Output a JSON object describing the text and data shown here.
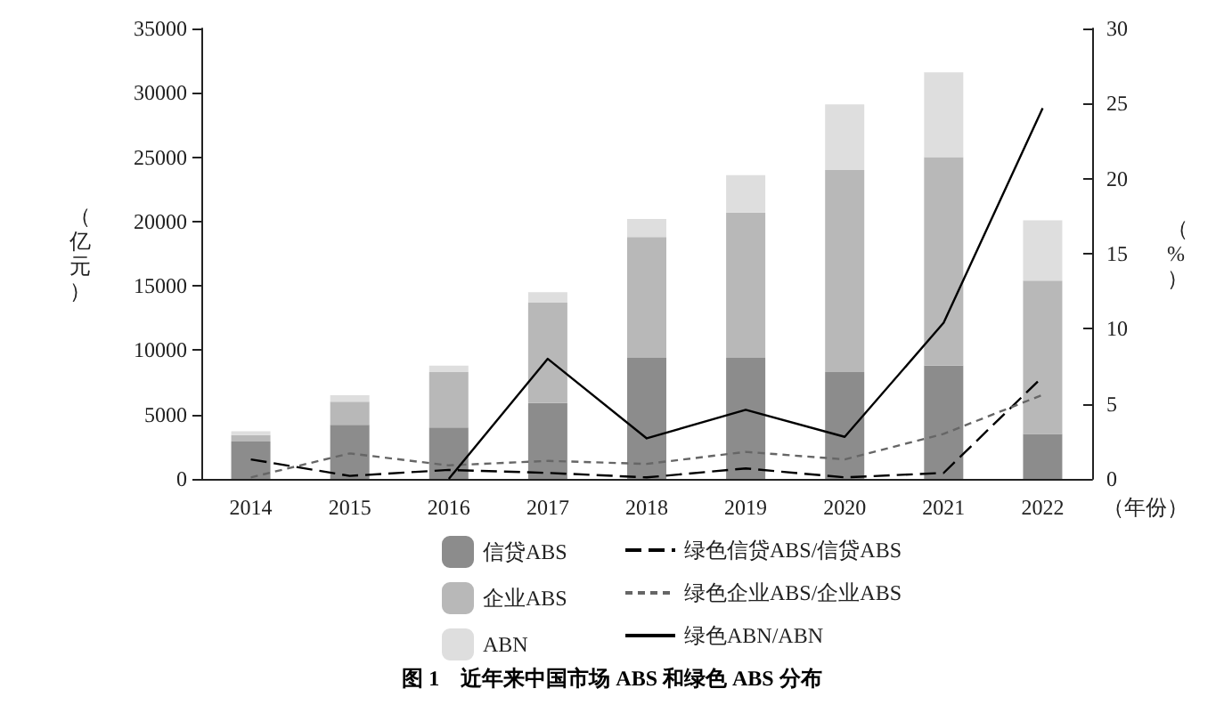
{
  "chart_data": {
    "type": "bar",
    "title": "图 1　近年来中国市场 ABS 和绿色 ABS 分布",
    "categories": [
      "2014",
      "2015",
      "2016",
      "2017",
      "2018",
      "2019",
      "2020",
      "2021",
      "2022"
    ],
    "xlabel": "（年份）",
    "ylabel": "（亿元）",
    "y2label": "（%）",
    "stacked": true,
    "grid": false,
    "legend": "bottom",
    "marker": "none",
    "ylim": [
      0,
      35000
    ],
    "yticks": [
      0,
      5000,
      10000,
      15000,
      20000,
      25000,
      30000,
      35000
    ],
    "y2lim": [
      0,
      30
    ],
    "y2ticks": [
      0,
      5,
      10,
      15,
      20,
      25,
      30
    ],
    "series": [
      {
        "name": "信贷ABS",
        "color": "#8c8c8c",
        "values": [
          2900,
          4200,
          4000,
          5900,
          9400,
          9400,
          8300,
          8800,
          3500
        ]
      },
      {
        "name": "企业ABS",
        "color": "#b8b8b8",
        "values": [
          500,
          1800,
          4300,
          7800,
          9400,
          11300,
          15700,
          16200,
          11900
        ]
      },
      {
        "name": "ABN",
        "color": "#dedede",
        "values": [
          300,
          500,
          500,
          800,
          1400,
          2900,
          5100,
          6600,
          4700
        ]
      },
      {
        "name": "绿色信贷ABS/信贷ABS",
        "type": "line",
        "axis": "y2",
        "line_style": "dashed",
        "color": "#000000",
        "values": [
          1.3,
          0.2,
          0.6,
          0.4,
          0.1,
          0.7,
          0.1,
          0.4,
          6.8
        ]
      },
      {
        "name": "绿色企业ABS/企业ABS",
        "type": "line",
        "axis": "y2",
        "line_style": "dashed",
        "color": "#666666",
        "values": [
          0.1,
          1.7,
          0.9,
          1.2,
          1.0,
          1.8,
          1.3,
          3.0,
          5.6
        ]
      },
      {
        "name": "绿色ABN/ABN",
        "type": "line",
        "axis": "y2",
        "line_style": "solid",
        "color": "#000000",
        "values": [
          null,
          null,
          0,
          8.0,
          2.7,
          4.6,
          2.8,
          10.4,
          24.7
        ]
      }
    ]
  }
}
